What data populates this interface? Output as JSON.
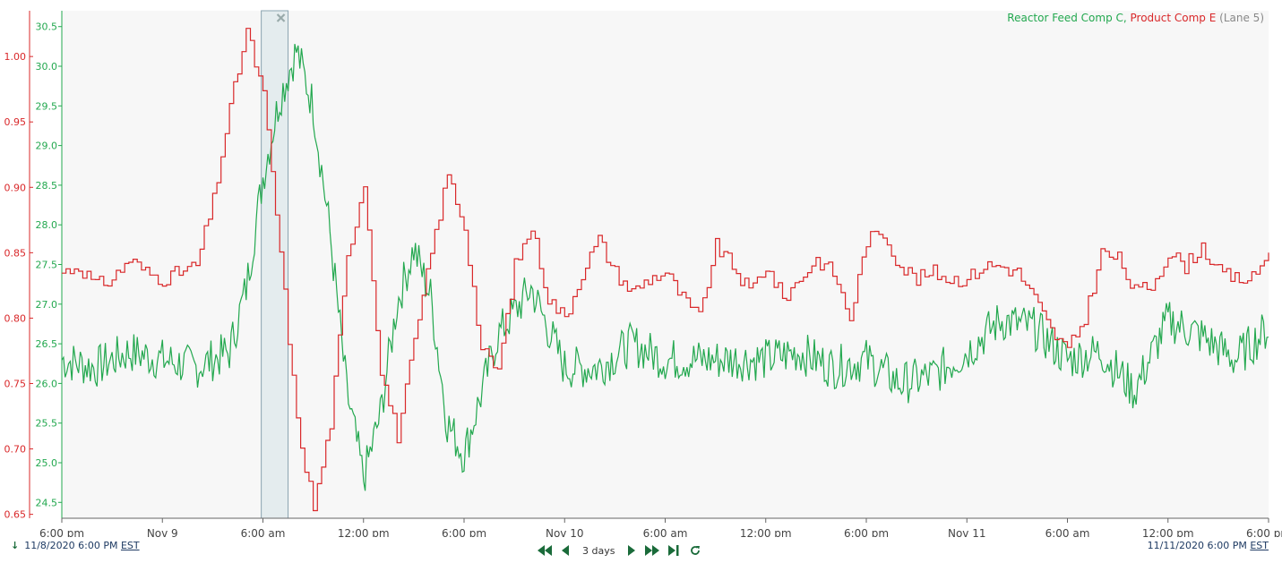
{
  "chart_data": {
    "type": "line",
    "title": "",
    "legend": {
      "position": "top-right",
      "items": [
        "Reactor Feed Comp C,",
        "Product Comp E",
        "(Lane 5)"
      ]
    },
    "x_ticks": [
      "6:00 pm",
      "Nov 9",
      "6:00 am",
      "12:00 pm",
      "6:00 pm",
      "Nov 10",
      "6:00 am",
      "12:00 pm",
      "6:00 pm",
      "Nov 11",
      "6:00 am",
      "12:00 pm",
      "6:00 pm"
    ],
    "x_range": [
      "2020-11-08 18:00",
      "2020-11-11 18:00"
    ],
    "y_axes": [
      {
        "name": "Product Comp E",
        "color": "#d9282a",
        "ticks": [
          "1.00",
          "0.95",
          "0.90",
          "0.85",
          "0.80",
          "0.75",
          "0.70",
          "0.65"
        ],
        "ylim": [
          0.647,
          1.035
        ]
      },
      {
        "name": "Reactor Feed Comp C",
        "color": "#23a84f",
        "ticks": [
          "30.5",
          "30.0",
          "29.5",
          "29.0",
          "28.5",
          "28.0",
          "27.5",
          "27.0",
          "26.5",
          "26.0",
          "25.5",
          "25.0",
          "24.5"
        ],
        "ylim": [
          24.3,
          30.7
        ]
      }
    ],
    "series": [
      {
        "name": "Reactor Feed Comp C",
        "color": "#23a84f",
        "axis": "right",
        "hours": [
          0,
          2,
          4,
          6,
          8,
          10,
          11,
          12,
          13,
          14,
          15,
          16,
          17,
          18,
          19,
          20,
          21,
          22,
          23,
          24,
          26,
          28,
          30,
          32,
          34,
          36,
          38,
          40,
          42,
          44,
          46,
          48,
          50,
          52,
          54,
          56,
          58,
          60,
          62,
          64,
          66,
          68,
          70,
          72
        ],
        "values": [
          26.3,
          26.2,
          26.4,
          26.3,
          26.2,
          26.4,
          27.2,
          28.6,
          29.6,
          30.2,
          29.5,
          27.9,
          25.9,
          24.8,
          25.6,
          27.0,
          27.7,
          27.1,
          25.5,
          25.1,
          26.6,
          27.2,
          26.2,
          26.2,
          26.5,
          26.3,
          26.3,
          26.3,
          26.3,
          26.4,
          26.2,
          26.3,
          26.0,
          26.1,
          26.4,
          26.8,
          26.7,
          26.3,
          26.4,
          25.9,
          26.8,
          26.6,
          26.3,
          26.7
        ]
      },
      {
        "name": "Product Comp E",
        "color": "#d9282a",
        "axis": "left",
        "hours": [
          0,
          1,
          2,
          3,
          4,
          5,
          6,
          7,
          8,
          9,
          10,
          11,
          12,
          13,
          14,
          15,
          16,
          17,
          18,
          19,
          20,
          21,
          22,
          23,
          24,
          25,
          26,
          27,
          28,
          29,
          30,
          31,
          32,
          33,
          34,
          35,
          36,
          37,
          38,
          39,
          40,
          41,
          42,
          43,
          44,
          45,
          46,
          47,
          48,
          49,
          50,
          51,
          52,
          53,
          54,
          55,
          56,
          57,
          58,
          59,
          60,
          61,
          62,
          63,
          64,
          65,
          66,
          67,
          68,
          69,
          70,
          71,
          72
        ],
        "values": [
          0.835,
          0.84,
          0.825,
          0.83,
          0.845,
          0.835,
          0.83,
          0.835,
          0.84,
          0.89,
          0.96,
          1.02,
          0.97,
          0.85,
          0.72,
          0.655,
          0.72,
          0.845,
          0.905,
          0.76,
          0.71,
          0.78,
          0.85,
          0.91,
          0.87,
          0.775,
          0.76,
          0.84,
          0.87,
          0.815,
          0.8,
          0.835,
          0.86,
          0.835,
          0.82,
          0.83,
          0.835,
          0.815,
          0.8,
          0.855,
          0.84,
          0.82,
          0.84,
          0.815,
          0.83,
          0.845,
          0.835,
          0.8,
          0.86,
          0.865,
          0.84,
          0.83,
          0.835,
          0.83,
          0.83,
          0.84,
          0.84,
          0.835,
          0.815,
          0.79,
          0.775,
          0.8,
          0.85,
          0.845,
          0.82,
          0.825,
          0.85,
          0.84,
          0.855,
          0.835,
          0.83,
          0.83,
          0.85
        ]
      }
    ],
    "selection_band_hours": [
      11.9,
      13.5
    ]
  },
  "footer": {
    "start_date": "11/8/2020 6:00 PM",
    "start_tz": "EST",
    "end_date": "11/11/2020 6:00 PM",
    "end_tz": "EST",
    "range_label": "3 days"
  },
  "colors": {
    "green": "#23a84f",
    "red": "#d9282a",
    "nav": "#1a6b3a"
  }
}
